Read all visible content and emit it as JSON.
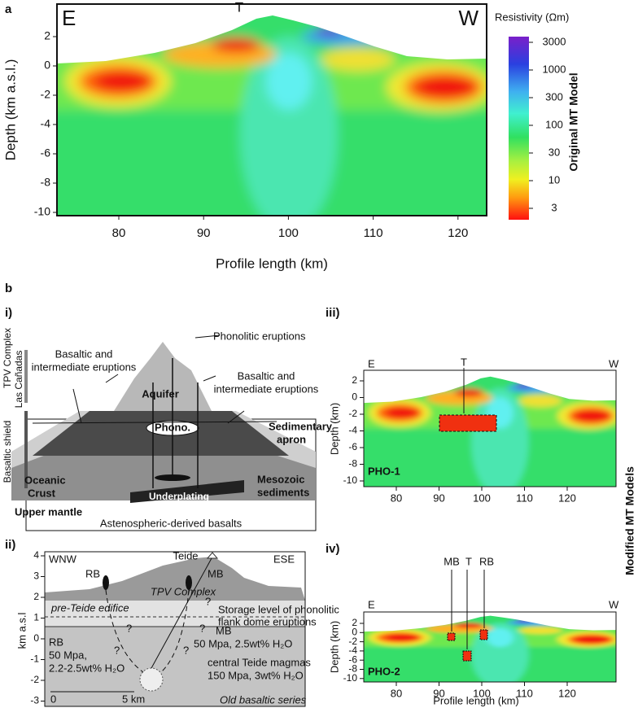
{
  "panel_a": {
    "label": "a",
    "corner_left": "E",
    "corner_right": "W",
    "marker": "T",
    "y_axis_label": "Depth (km a.s.l.)",
    "x_axis_label": "Profile length (km)",
    "yticks": [
      "2",
      "0",
      "-2",
      "-4",
      "-6",
      "-8",
      "-10"
    ],
    "xticks": [
      "80",
      "90",
      "100",
      "110",
      "120"
    ],
    "colorbar_title": "Resistivity (Ωm)",
    "colorbar_ticks": [
      "3000",
      "1000",
      "300",
      "100",
      "30",
      "10",
      "3"
    ],
    "model_label": "Original MT Model"
  },
  "panel_b": {
    "label": "b",
    "side_label": "Modified MT Models",
    "i": {
      "label": "i)",
      "phonolitic": "Phonolitic eruptions",
      "basaltic_left": [
        "Basaltic and",
        "intermediate eruptions"
      ],
      "basaltic_right": [
        "Basaltic and",
        "intermediate eruptions"
      ],
      "tpv": "TPV Complex",
      "las_canadas": "Las Cañadas",
      "shield": "Basaltic shield",
      "aquifer": "Aquifer",
      "phono": "Phono.",
      "apron": [
        "Sedimentary",
        "apron"
      ],
      "crust": [
        "Oceanic",
        "Crust"
      ],
      "mesozoic": [
        "Mesozoic",
        "sediments"
      ],
      "underplating": "Underplating",
      "mantle": "Upper mantle",
      "astheno": "Astenospheric-derived basalts"
    },
    "ii": {
      "label": "ii)",
      "left": "WNW",
      "right": "ESE",
      "peak": "Teide",
      "rb": "RB",
      "mb": "MB",
      "tpv": "TPV Complex",
      "pre_teide": "pre-Teide edifice",
      "storage": [
        "Storage level of phonolitic",
        "flank dome eruptions"
      ],
      "rb_text": [
        "RB",
        "50 Mpa,",
        "2.2-2.5wt% H₂O"
      ],
      "mb_text": [
        "MB",
        "50 Mpa, 2.5wt% H₂O"
      ],
      "central": [
        "central Teide magmas",
        "150 Mpa, 3wt% H₂O"
      ],
      "old": "Old basaltic series",
      "scale_0": "0",
      "scale_5": "5 km",
      "y_axis_label": "km a.s.l",
      "yticks": [
        "4",
        "3",
        "2",
        "1",
        "0",
        "-1",
        "-2",
        "-3"
      ],
      "unknown": "?"
    },
    "iii": {
      "label": "iii)",
      "corner_left": "E",
      "corner_right": "W",
      "marker": "T",
      "model": "PHO-1",
      "y_axis_label": "Depth (km)",
      "yticks": [
        "2",
        "0",
        "-2",
        "-4",
        "-6",
        "-8",
        "-10"
      ],
      "xticks": [
        "80",
        "90",
        "100",
        "110",
        "120"
      ]
    },
    "iv": {
      "label": "iv)",
      "corner_left": "E",
      "corner_right": "W",
      "marker_mb": "MB",
      "marker": "T",
      "marker_rb": "RB",
      "model": "PHO-2",
      "y_axis_label": "Depth (km)",
      "x_axis_label": "Profile length (km)",
      "yticks": [
        "2",
        "0",
        "-2",
        "-4",
        "-6",
        "-8",
        "-10"
      ],
      "xticks": [
        "80",
        "90",
        "100",
        "110",
        "120"
      ]
    }
  }
}
